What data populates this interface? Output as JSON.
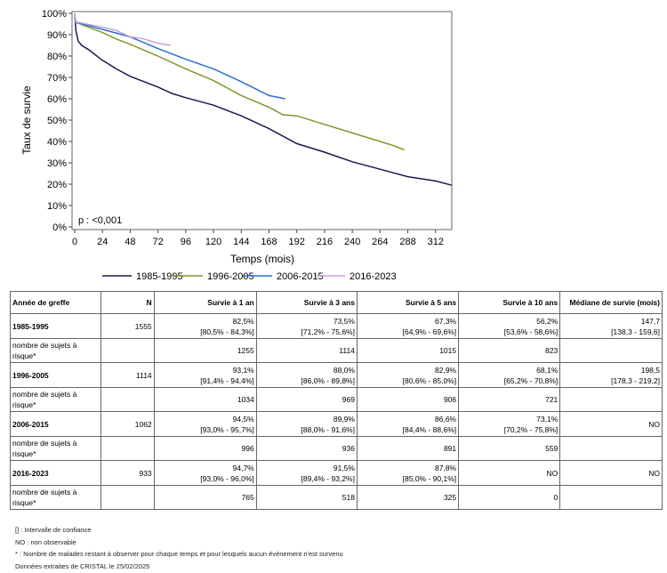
{
  "chart_data": {
    "type": "line",
    "xlabel": "Temps (mois)",
    "ylabel": "Taux de survie",
    "xlim": [
      0,
      326
    ],
    "ylim": [
      0,
      100
    ],
    "xticks": [
      0,
      24,
      48,
      72,
      96,
      120,
      144,
      168,
      192,
      216,
      240,
      264,
      288,
      312
    ],
    "yticks": [
      "0%",
      "10%",
      "20%",
      "30%",
      "40%",
      "50%",
      "60%",
      "70%",
      "80%",
      "90%",
      "100%"
    ],
    "annotation": "p : <0,001",
    "legend_position": "bottom",
    "grid": false,
    "series": [
      {
        "name": "1985-1995",
        "color": "#1a1a4e",
        "x": [
          0,
          1,
          3,
          6,
          12,
          24,
          36,
          48,
          60,
          72,
          84,
          96,
          120,
          144,
          168,
          192,
          216,
          240,
          264,
          288,
          312,
          326
        ],
        "y": [
          100,
          92,
          87,
          85,
          83,
          78,
          74,
          70.5,
          68,
          65.5,
          62.5,
          60.5,
          57,
          52,
          46,
          39,
          35,
          30.5,
          27,
          23.5,
          21.5,
          19.5
        ]
      },
      {
        "name": "1996-2005",
        "color": "#7a9a2a",
        "x": [
          0,
          12,
          24,
          36,
          48,
          72,
          96,
          120,
          144,
          168,
          180,
          192,
          216,
          240,
          264,
          276,
          285
        ],
        "y": [
          96,
          93.5,
          91,
          88,
          85.5,
          80,
          74,
          68.5,
          61.5,
          56,
          52.5,
          52,
          48,
          44,
          40,
          38,
          36
        ]
      },
      {
        "name": "2006-2015",
        "color": "#2a6fd0",
        "x": [
          0,
          24,
          48,
          72,
          96,
          120,
          144,
          168,
          182
        ],
        "y": [
          96,
          92.5,
          89,
          83.5,
          78.5,
          74,
          68,
          61.5,
          60
        ]
      },
      {
        "name": "2016-2023",
        "color": "#c9a0dc",
        "x": [
          0,
          1,
          24,
          36,
          48,
          60,
          72,
          83
        ],
        "y": [
          100,
          96,
          93.5,
          92,
          89,
          88,
          86,
          85
        ]
      }
    ]
  },
  "table": {
    "headers": [
      "Année de greffe",
      "N",
      "Survie à 1 an",
      "Survie à 3 ans",
      "Survie à 5 ans",
      "Survie à 10 ans",
      "Médiane de survie (mois)"
    ],
    "risk_label": "nombre de sujets à risque*",
    "groups": [
      {
        "year": "1985-1995",
        "n": "1555",
        "cells": [
          [
            "82,5%",
            "[80,5% - 84,3%]"
          ],
          [
            "73,5%",
            "[71,2% - 75,6%]"
          ],
          [
            "67,3%",
            "[64,9% - 69,6%]"
          ],
          [
            "56,2%",
            "[53,6% - 58,6%]"
          ],
          [
            "147,7",
            "[138,3 - 159,6]"
          ]
        ],
        "risk": [
          "1255",
          "1114",
          "1015",
          "823"
        ]
      },
      {
        "year": "1996-2005",
        "n": "1114",
        "cells": [
          [
            "93,1%",
            "[91,4% - 94,4%]"
          ],
          [
            "88,0%",
            "[86,0% - 89,8%]"
          ],
          [
            "82,9%",
            "[80,6% - 85,0%]"
          ],
          [
            "68,1%",
            "[65,2% - 70,8%]"
          ],
          [
            "198,5",
            "[178,3 - 219,2]"
          ]
        ],
        "risk": [
          "1034",
          "969",
          "906",
          "721"
        ]
      },
      {
        "year": "2006-2015",
        "n": "1062",
        "cells": [
          [
            "94,5%",
            "[93,0% - 95,7%]"
          ],
          [
            "89,9%",
            "[88,0% - 91,6%]"
          ],
          [
            "86,6%",
            "[84,4% - 88,6%]"
          ],
          [
            "73,1%",
            "[70,2% - 75,8%]"
          ],
          [
            "NO",
            ""
          ]
        ],
        "risk": [
          "996",
          "936",
          "891",
          "559"
        ]
      },
      {
        "year": "2016-2023",
        "n": "933",
        "cells": [
          [
            "94,7%",
            "[93,0% - 96,0%]"
          ],
          [
            "91,5%",
            "[89,4% - 93,2%]"
          ],
          [
            "87,8%",
            "[85,0% - 90,1%]"
          ],
          [
            "NO",
            ""
          ],
          [
            "NO",
            ""
          ]
        ],
        "risk": [
          "765",
          "518",
          "325",
          "0"
        ]
      }
    ]
  },
  "notes": [
    "[] : Intervalle de confiance",
    "NO : non observable",
    "* : Nombre de malades restant à observer pour chaque temps et pour lesquels aucun évènement n'est survenu",
    "Données extraites de CRISTAL le 25/02/2025"
  ]
}
